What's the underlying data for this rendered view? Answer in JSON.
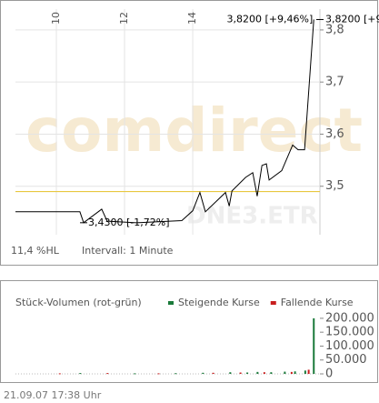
{
  "chart_data": [
    {
      "type": "line",
      "watermark": "comdirect",
      "symbol": "DNE3.ETR",
      "note_left": "11,4 %HL",
      "note_interval": "Intervall: 1 Minute",
      "xlim": [
        8.8,
        17.73
      ],
      "xticks": [
        10,
        12,
        14
      ],
      "ylim": [
        3.407,
        3.84
      ],
      "yticks": [
        {
          "value": 3.8,
          "label": "3,8"
        },
        {
          "value": 3.7,
          "label": "3,7"
        },
        {
          "value": 3.6,
          "label": "3,6"
        },
        {
          "value": 3.5,
          "label": "3,5"
        }
      ],
      "reference": 3.4898,
      "reference_color": "#e8c840",
      "grid": true,
      "series": [
        {
          "color": "#000000",
          "x": [
            8.8,
            10.69,
            10.8,
            11.33,
            11.49,
            12.35,
            13.68,
            14.0,
            14.21,
            14.37,
            14.96,
            15.07,
            15.15,
            15.55,
            15.76,
            15.89,
            16.03,
            16.16,
            16.24,
            16.61,
            16.93,
            17.09,
            17.28,
            17.55
          ],
          "values": [
            3.451,
            3.451,
            3.43,
            3.456,
            3.433,
            3.43,
            3.434,
            3.453,
            3.488,
            3.451,
            3.488,
            3.462,
            3.491,
            3.517,
            3.526,
            3.481,
            3.54,
            3.543,
            3.512,
            3.53,
            3.579,
            3.57,
            3.57,
            3.82
          ]
        }
      ],
      "annotations": [
        {
          "text": "3,8200 [+9,46%]",
          "x": 17.55,
          "value": 3.82
        },
        {
          "text": "3,4300 [-1,72%]",
          "x": 10.8,
          "value": 3.43
        }
      ]
    },
    {
      "type": "bar",
      "title": "Stück-Volumen (rot-grün)",
      "xlim": [
        8.8,
        17.73
      ],
      "ylim": [
        0,
        216000
      ],
      "yticks": [
        {
          "value": 200000,
          "label": "200.000"
        },
        {
          "value": 150000,
          "label": "150.000"
        },
        {
          "value": 100000,
          "label": "100.000"
        },
        {
          "value": 50000,
          "label": "50.000"
        },
        0
      ],
      "series": [
        {
          "name": "Steigende Kurse",
          "color": "#1a7a3a",
          "x": [
            10.7,
            12.3,
            13.5,
            14.3,
            15.1,
            15.6,
            15.9,
            16.3,
            16.7,
            17.0,
            17.3,
            17.55
          ],
          "values": [
            3000,
            2000,
            2500,
            4000,
            6000,
            5000,
            7000,
            6000,
            8000,
            9000,
            12000,
            200000
          ]
        },
        {
          "name": "Fallende Kurse",
          "color": "#c81e1e",
          "x": [
            10.1,
            11.5,
            13.0,
            14.6,
            15.4,
            16.1,
            16.9,
            17.4
          ],
          "values": [
            2000,
            3000,
            2000,
            4000,
            5000,
            6000,
            7000,
            15000
          ]
        }
      ]
    }
  ],
  "footer": "21.09.07    17:38 Uhr"
}
